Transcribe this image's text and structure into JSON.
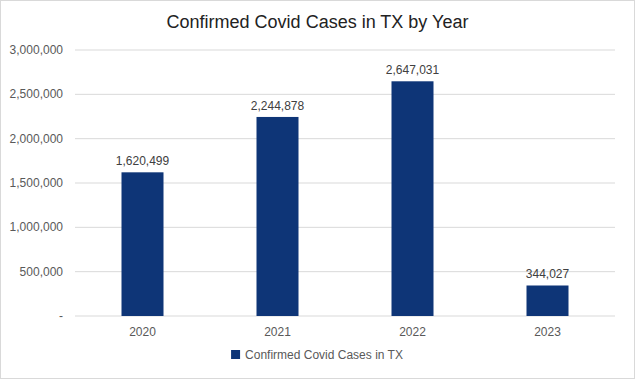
{
  "chart_data": {
    "type": "bar",
    "title": "Confirmed Covid Cases in TX by Year",
    "categories": [
      "2020",
      "2021",
      "2022",
      "2023"
    ],
    "series": [
      {
        "name": "Confirmed Covid Cases in TX",
        "color": "#0e3577",
        "values": [
          1620499,
          2244878,
          2647031,
          344027
        ],
        "value_labels": [
          "1,620,499",
          "2,244,878",
          "2,647,031",
          "344,027"
        ]
      }
    ],
    "ylim": [
      0,
      3000000
    ],
    "yticks": [
      {
        "value": 0,
        "label": "-"
      },
      {
        "value": 500000,
        "label": "500,000"
      },
      {
        "value": 1000000,
        "label": "1,000,000"
      },
      {
        "value": 1500000,
        "label": "1,500,000"
      },
      {
        "value": 2000000,
        "label": "2,000,000"
      },
      {
        "value": 2500000,
        "label": "2,500,000"
      },
      {
        "value": 3000000,
        "label": "3,000,000"
      }
    ],
    "grid": true,
    "legend": "bottom",
    "data_labels": true
  }
}
